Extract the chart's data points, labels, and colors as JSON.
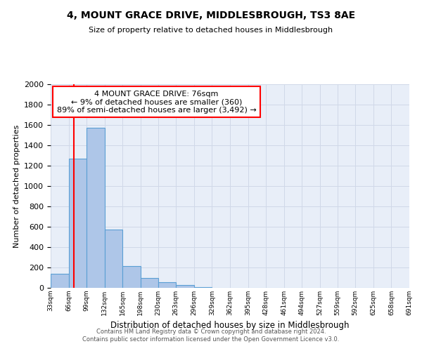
{
  "title": "4, MOUNT GRACE DRIVE, MIDDLESBROUGH, TS3 8AE",
  "subtitle": "Size of property relative to detached houses in Middlesbrough",
  "xlabel": "Distribution of detached houses by size in Middlesbrough",
  "ylabel": "Number of detached properties",
  "footer_line1": "Contains HM Land Registry data © Crown copyright and database right 2024.",
  "footer_line2": "Contains public sector information licensed under the Open Government Licence v3.0.",
  "bar_edges": [
    33,
    66,
    99,
    132,
    165,
    198,
    230,
    263,
    296,
    329,
    362,
    395,
    428,
    461,
    494,
    527,
    559,
    592,
    625,
    658,
    691
  ],
  "bar_heights": [
    140,
    1270,
    1570,
    570,
    215,
    95,
    55,
    30,
    8,
    0,
    0,
    0,
    0,
    0,
    0,
    0,
    0,
    0,
    0,
    0
  ],
  "bar_color": "#aec6e8",
  "bar_edge_color": "#5a9fd4",
  "ylim": [
    0,
    2000
  ],
  "yticks": [
    0,
    200,
    400,
    600,
    800,
    1000,
    1200,
    1400,
    1600,
    1800,
    2000
  ],
  "red_line_x": 76,
  "annotation_title": "4 MOUNT GRACE DRIVE: 76sqm",
  "annotation_line1": "← 9% of detached houses are smaller (360)",
  "annotation_line2": "89% of semi-detached houses are larger (3,492) →",
  "grid_color": "#d0d8e8",
  "bg_color": "#e8eef8",
  "tick_labels": [
    "33sqm",
    "66sqm",
    "99sqm",
    "132sqm",
    "165sqm",
    "198sqm",
    "230sqm",
    "263sqm",
    "296sqm",
    "329sqm",
    "362sqm",
    "395sqm",
    "428sqm",
    "461sqm",
    "494sqm",
    "527sqm",
    "559sqm",
    "592sqm",
    "625sqm",
    "658sqm",
    "691sqm"
  ]
}
